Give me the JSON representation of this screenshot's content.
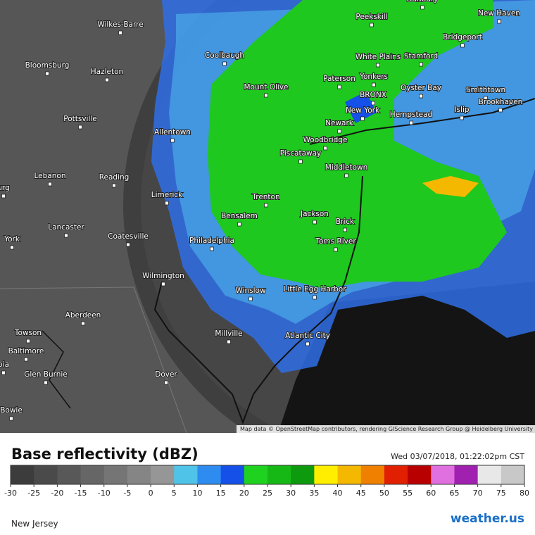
{
  "map": {
    "cities": [
      "Danbury",
      "New Haven",
      "Peekskill",
      "Bridgeport",
      "Wilkes-Barre",
      "Stamford",
      "White Plains",
      "Coolbaugh",
      "Bloomsburg",
      "Hazleton",
      "Paterson",
      "Yonkers",
      "Mount Olive",
      "Oyster Bay",
      "Smithtown",
      "BRONX",
      "Brookhaven",
      "New York",
      "Islip",
      "Hempstead",
      "Pottsville",
      "Newark",
      "Allentown",
      "Woodbridge",
      "Piscataway",
      "Middletown",
      "urg",
      "Lebanon",
      "Reading",
      "Limerick",
      "Trenton",
      "Bensalem",
      "Jackson",
      "Brick",
      "Lancaster",
      "Coatesville",
      "York",
      "Philadelphia",
      "Toms River",
      "Wilmington",
      "Little Egg Harbor",
      "Winslow",
      "Aberdeen",
      "Towson",
      "Millville",
      "Atlantic City",
      "Baltimore",
      "bia",
      "Glen Burnie",
      "Dover",
      "Bowie"
    ],
    "attribution": "Map data © OpenStreetMap contributors, rendering GIScience Research Group @ Heidelberg University"
  },
  "legend": {
    "title": "Base reflectivity (dBZ)",
    "timestamp": "Wed 03/07/2018, 01:22:02pm CST",
    "ticks": [
      -30,
      -25,
      -20,
      -15,
      -10,
      -5,
      0,
      5,
      10,
      15,
      20,
      25,
      30,
      35,
      40,
      45,
      50,
      55,
      60,
      65,
      70,
      75,
      80
    ],
    "colors": [
      "#3c3c3c",
      "#4a4a4a",
      "#585858",
      "#666666",
      "#757575",
      "#858585",
      "#969696",
      "#4fc3e8",
      "#2e8cf0",
      "#1550e8",
      "#1fd21f",
      "#16b816",
      "#0e9a0e",
      "#ffee00",
      "#f5b800",
      "#f08000",
      "#e02000",
      "#b80000",
      "#e070e0",
      "#a020b0",
      "#e8e8e8",
      "#c8c8c8"
    ]
  },
  "footer": {
    "region": "New Jersey",
    "logo": "weather.us"
  }
}
